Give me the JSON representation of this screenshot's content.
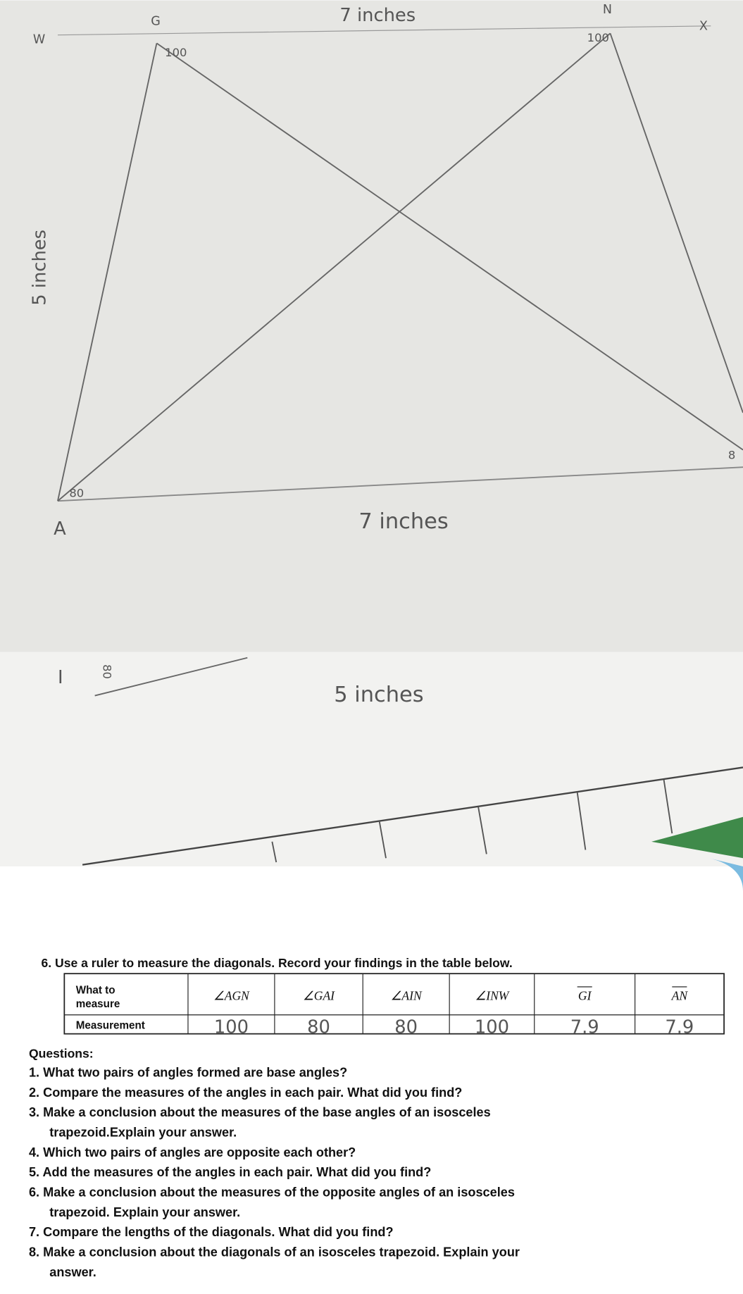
{
  "drawing": {
    "top_length": "7 inches",
    "left_length": "5 inches",
    "bottom_length": "7 inches",
    "lower_length": "5 inches",
    "vertex_labels": [
      "W",
      "G",
      "N",
      "X",
      "A",
      "I"
    ],
    "angle_marks": [
      "100",
      "100",
      "80",
      "8",
      "80"
    ]
  },
  "instruction": "6. Use a ruler to measure the diagonals. Record your findings in the table below.",
  "table": {
    "header": [
      "What to measure",
      "∠AGN",
      "∠GAI",
      "∠AIN",
      "∠INW",
      "GI",
      "AN"
    ],
    "rows": [
      [
        "Measurement",
        "100",
        "80",
        "80",
        "100",
        "7.9",
        "7.9"
      ]
    ]
  },
  "questions": {
    "heading": "Questions:",
    "items": [
      [
        "1. What two pairs of angles formed are base angles?"
      ],
      [
        "2. Compare the measures of the angles in each pair. What did you find?"
      ],
      [
        "3. Make a conclusion about the measures of the base angles of an isosceles",
        "trapezoid.Explain your answer."
      ],
      [
        "4. Which two pairs of angles are opposite each other?"
      ],
      [
        "5. Add the measures of the angles in each pair. What did you find?"
      ],
      [
        "6. Make a conclusion about the measures of the opposite angles of an isosceles",
        "trapezoid. Explain your answer."
      ],
      [
        "7. Compare the lengths of the diagonals. What did you find?"
      ],
      [
        "8. Make a conclusion about the diagonals of an isosceles trapezoid. Explain your",
        "answer."
      ]
    ]
  }
}
